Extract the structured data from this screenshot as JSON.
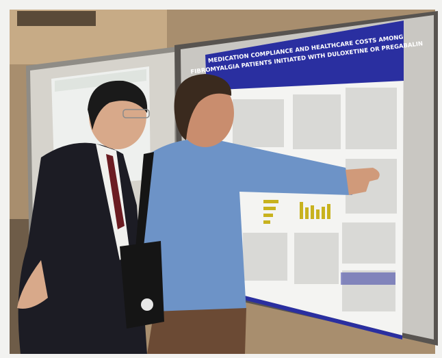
{
  "poster": {
    "title_lines": [
      "MEDICATION COMPLIANCE AND HEALTHCARE COSTS AMONG",
      "FIBROMYALGIA PATIENTS INITIATED WITH DULOXETINE OR PREGABALIN"
    ]
  }
}
